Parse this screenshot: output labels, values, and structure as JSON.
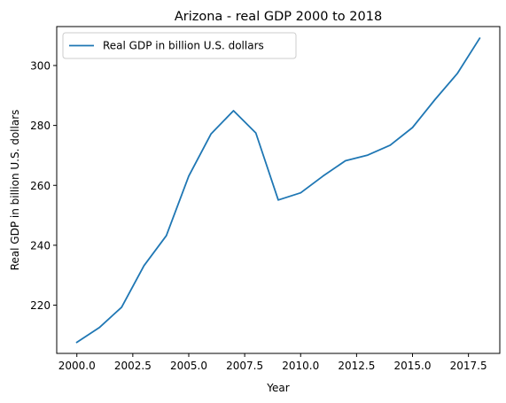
{
  "chart_data": {
    "type": "line",
    "title": "Arizona - real GDP 2000 to 2018",
    "xlabel": "Year",
    "ylabel": "Real GDP in billion U.S. dollars",
    "xlim": [
      1999.1,
      2018.9
    ],
    "ylim": [
      203.9,
      313.0
    ],
    "x_ticks": [
      2000.0,
      2002.5,
      2005.0,
      2007.5,
      2010.0,
      2012.5,
      2015.0,
      2017.5
    ],
    "x_tick_labels": [
      "2000.0",
      "2002.5",
      "2005.0",
      "2007.5",
      "2010.0",
      "2012.5",
      "2015.0",
      "2017.5"
    ],
    "y_ticks": [
      220,
      240,
      260,
      280,
      300
    ],
    "y_tick_labels": [
      "220",
      "240",
      "260",
      "280",
      "300"
    ],
    "grid": false,
    "legend_position": "upper-left",
    "series": [
      {
        "name": "Real GDP in billion U.S. dollars",
        "color": "#1f77b4",
        "x": [
          2000,
          2001,
          2002,
          2003,
          2004,
          2005,
          2006,
          2007,
          2008,
          2009,
          2010,
          2011,
          2012,
          2013,
          2014,
          2015,
          2016,
          2017,
          2018
        ],
        "values": [
          207.6,
          212.5,
          219.3,
          233.2,
          243.2,
          263.1,
          277.2,
          284.9,
          277.5,
          255.1,
          257.5,
          263.1,
          268.2,
          270.1,
          273.4,
          279.3,
          288.6,
          297.3,
          309.1
        ]
      }
    ]
  }
}
